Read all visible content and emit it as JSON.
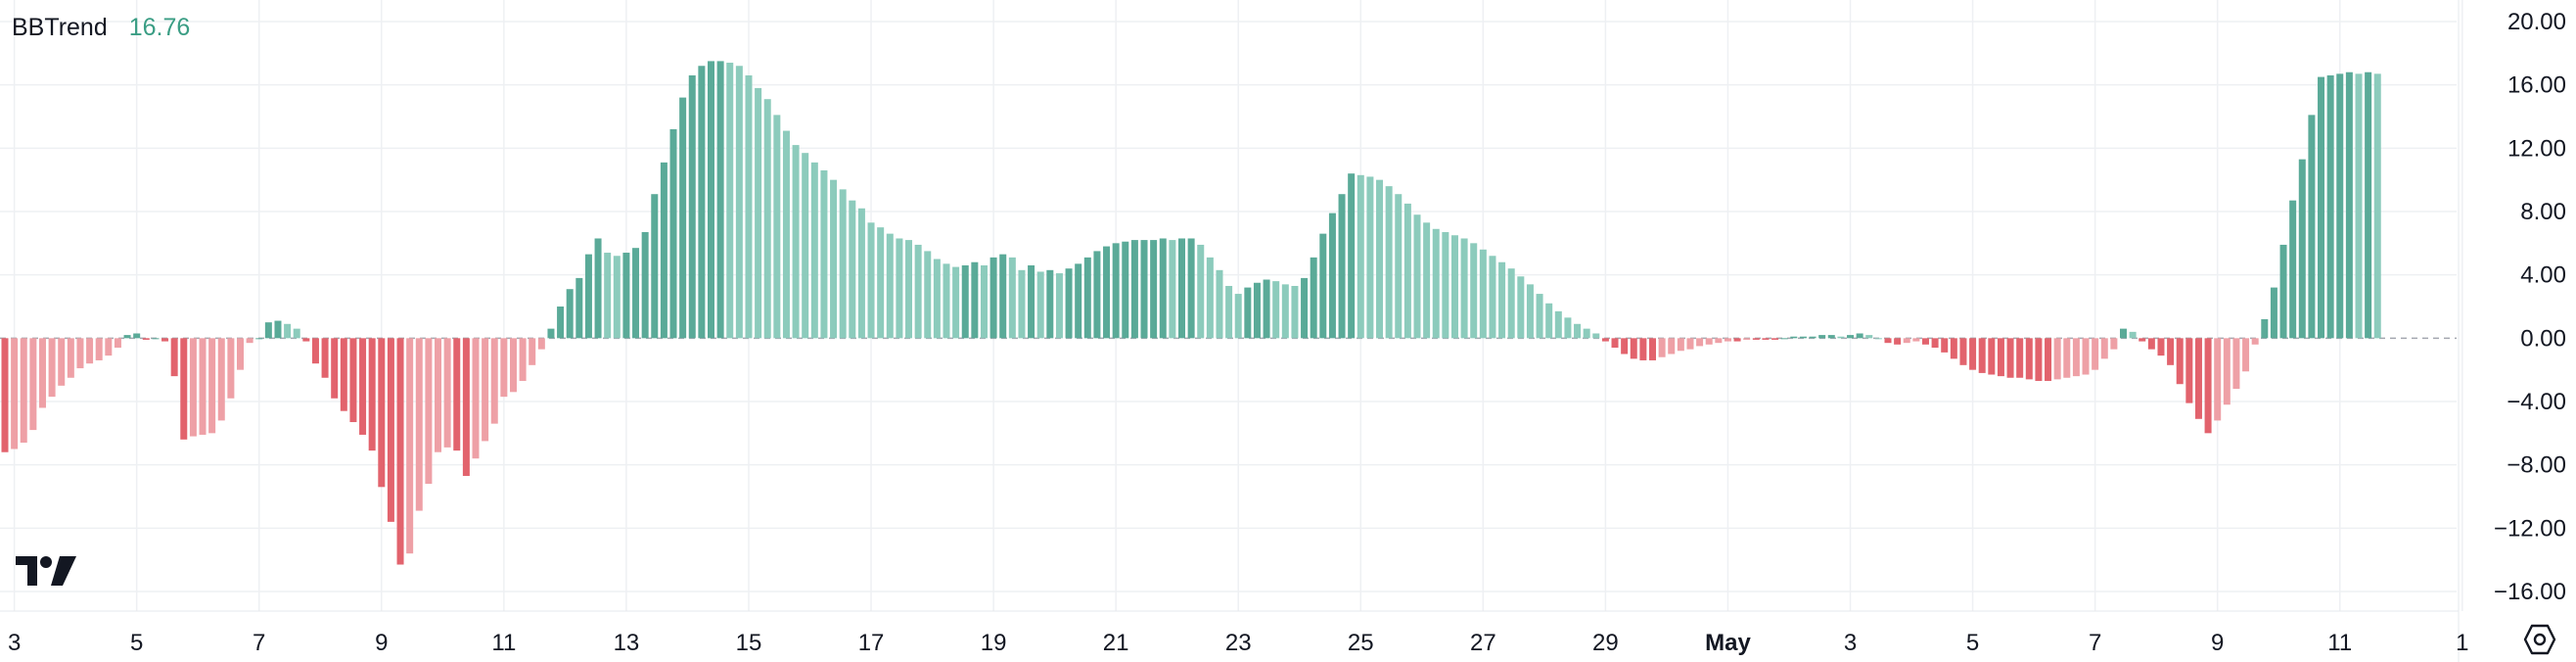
{
  "indicator": {
    "name": "BBTrend",
    "value": "16.76"
  },
  "colors": {
    "pos_strong": "#5aaa98",
    "pos_light": "#8ccbbc",
    "neg_strong": "#e2636d",
    "neg_light": "#eea0a6",
    "grid": "#eef0f3",
    "text": "#131722",
    "zero_line": "#a3a6af"
  },
  "icons": [
    "tradingview-logo-icon",
    "settings-icon"
  ],
  "chart_data": {
    "type": "bar",
    "title": "",
    "xlabel": "",
    "ylabel": "",
    "ylim": [
      -16,
      20
    ],
    "y_ticks": [
      "20.00",
      "16.00",
      "12.00",
      "8.00",
      "4.00",
      "0.00",
      "−4.00",
      "−8.00",
      "−12.00",
      "−16.00"
    ],
    "y_tick_values": [
      20,
      16,
      12,
      8,
      4,
      0,
      -4,
      -8,
      -12,
      -16
    ],
    "x_ticks": [
      {
        "label": "3",
        "index": 1,
        "bold": false
      },
      {
        "label": "5",
        "index": 14,
        "bold": false
      },
      {
        "label": "7",
        "index": 27,
        "bold": false
      },
      {
        "label": "9",
        "index": 40,
        "bold": false
      },
      {
        "label": "11",
        "index": 53,
        "bold": false
      },
      {
        "label": "13",
        "index": 66,
        "bold": false
      },
      {
        "label": "15",
        "index": 79,
        "bold": false
      },
      {
        "label": "17",
        "index": 92,
        "bold": false
      },
      {
        "label": "19",
        "index": 105,
        "bold": false
      },
      {
        "label": "21",
        "index": 118,
        "bold": false
      },
      {
        "label": "23",
        "index": 131,
        "bold": false
      },
      {
        "label": "25",
        "index": 144,
        "bold": false
      },
      {
        "label": "27",
        "index": 157,
        "bold": false
      },
      {
        "label": "29",
        "index": 170,
        "bold": false
      },
      {
        "label": "May",
        "index": 183,
        "bold": true
      },
      {
        "label": "3",
        "index": 196,
        "bold": false
      },
      {
        "label": "5",
        "index": 209,
        "bold": false
      },
      {
        "label": "7",
        "index": 222,
        "bold": false
      },
      {
        "label": "9",
        "index": 235,
        "bold": false
      },
      {
        "label": "11",
        "index": 248,
        "bold": false
      },
      {
        "label": "1",
        "index": 261,
        "bold": false
      }
    ],
    "series": [
      {
        "values": [
          -7.2,
          -7.0,
          -6.6,
          -5.8,
          -4.4,
          -3.7,
          -3.0,
          -2.5,
          -1.9,
          -1.6,
          -1.4,
          -1.1,
          -0.6,
          0.2,
          0.3,
          -0.1,
          0,
          -0.2,
          -2.4,
          -6.4,
          -6.2,
          -6.1,
          -6.0,
          -5.2,
          -3.8,
          -2.0,
          -0.3,
          0,
          1.0,
          1.1,
          0.9,
          0.6,
          -0.2,
          -1.6,
          -2.5,
          -3.8,
          -4.6,
          -5.3,
          -6.1,
          -7.1,
          -9.4,
          -11.6,
          -14.3,
          -13.6,
          -10.9,
          -9.2,
          -7.2,
          -6.9,
          -7.1,
          -8.7,
          -7.6,
          -6.5,
          -5.4,
          -3.7,
          -3.4,
          -2.7,
          -1.7,
          -0.7,
          0.6,
          2.0,
          3.1,
          3.8,
          5.3,
          6.3,
          5.4,
          5.2,
          5.4,
          5.7,
          6.7,
          9.1,
          11.1,
          13.2,
          15.2,
          16.6,
          17.2,
          17.5,
          17.5,
          17.4,
          17.2,
          16.6,
          15.8,
          15.1,
          14.1,
          13.1,
          12.2,
          11.7,
          11.1,
          10.6,
          10.0,
          9.4,
          8.7,
          8.2,
          7.3,
          7.0,
          6.6,
          6.3,
          6.2,
          5.9,
          5.5,
          5.0,
          4.7,
          4.5,
          4.6,
          4.8,
          4.6,
          5.1,
          5.3,
          5.1,
          4.3,
          4.6,
          4.2,
          4.3,
          4.1,
          4.4,
          4.7,
          5.1,
          5.5,
          5.8,
          6.0,
          6.1,
          6.2,
          6.2,
          6.2,
          6.3,
          6.2,
          6.3,
          6.3,
          5.9,
          5.1,
          4.3,
          3.3,
          2.8,
          3.2,
          3.5,
          3.7,
          3.6,
          3.4,
          3.3,
          3.8,
          5.1,
          6.6,
          7.9,
          9.1,
          10.4,
          10.3,
          10.2,
          10.0,
          9.6,
          9.1,
          8.5,
          7.8,
          7.3,
          6.9,
          6.7,
          6.5,
          6.3,
          6.0,
          5.6,
          5.2,
          4.8,
          4.4,
          3.9,
          3.4,
          2.8,
          2.2,
          1.7,
          1.3,
          0.9,
          0.6,
          0.3,
          -0.2,
          -0.6,
          -1.0,
          -1.3,
          -1.4,
          -1.4,
          -1.2,
          -1.0,
          -0.8,
          -0.7,
          -0.5,
          -0.4,
          -0.3,
          -0.2,
          -0.2,
          -0.1,
          -0.1,
          -0.1,
          -0.1,
          0,
          0.1,
          0.1,
          0.1,
          0.2,
          0.2,
          0.1,
          0.2,
          0.3,
          0.2,
          0,
          -0.3,
          -0.4,
          -0.3,
          -0.2,
          -0.4,
          -0.6,
          -0.9,
          -1.3,
          -1.7,
          -2.0,
          -2.2,
          -2.3,
          -2.4,
          -2.5,
          -2.5,
          -2.6,
          -2.7,
          -2.7,
          -2.6,
          -2.5,
          -2.4,
          -2.3,
          -2.0,
          -1.3,
          -0.7,
          0.6,
          0.4,
          -0.2,
          -0.7,
          -1.1,
          -1.7,
          -2.9,
          -4.1,
          -5.1,
          -6.0,
          -5.2,
          -4.2,
          -3.2,
          -2.1,
          -0.4,
          1.2,
          3.2,
          5.9,
          8.7,
          11.3,
          14.1,
          16.5,
          16.6,
          16.7,
          16.8,
          16.7,
          16.8,
          16.7
        ]
      }
    ]
  }
}
